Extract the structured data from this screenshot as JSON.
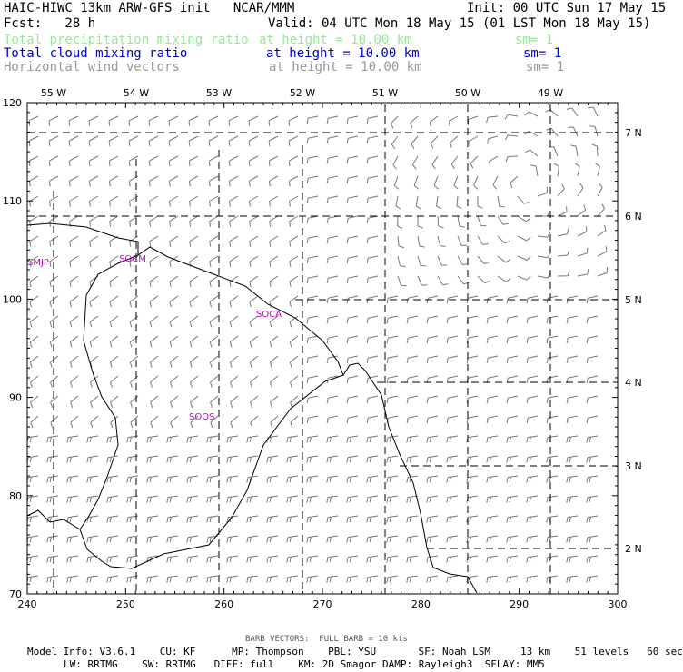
{
  "header": {
    "title": "HAIC-HIWC 13km ARW-GFS init   NCAR/MMM",
    "init": "Init: 00 UTC Sun 17 May 15",
    "fcst": "Fcst:   28 h",
    "valid": "Valid: 04 UTC Mon 18 May 15 (01 LST Mon 18 May 15)",
    "fields": [
      {
        "name": "Total precipitation mixing ratio",
        "level": "at height = 10.00 km",
        "sm": "sm= 1",
        "color": "#99e699"
      },
      {
        "name": "Total cloud mixing ratio",
        "level": "at height = 10.00 km",
        "sm": "sm= 1",
        "color": "#0000cc"
      },
      {
        "name": "Horizontal wind vectors",
        "level": "at height = 10.00 km",
        "sm": "sm= 1",
        "color": "#999999"
      }
    ]
  },
  "map": {
    "x_ticks": [
      "240",
      "250",
      "260",
      "270",
      "280",
      "290",
      "300"
    ],
    "y_ticks": [
      "70",
      "80",
      "90",
      "100",
      "110",
      "120"
    ],
    "lon_labels": [
      "55 W",
      "54 W",
      "53 W",
      "52 W",
      "51 W",
      "50 W",
      "49 W"
    ],
    "lat_labels": [
      "7 N",
      "6 N",
      "5 N",
      "4 N",
      "3 N",
      "2 N"
    ],
    "stations": [
      "SMJP",
      "SOCM",
      "SOCA",
      "SOOS"
    ],
    "coast_color": "#000000",
    "barb_color": "#777777"
  },
  "footer": {
    "barb_note": "BARB VECTORS:  FULL BARB = 10 kts",
    "line1": "Model Info: V3.6.1    CU: KF      MP: Thompson    PBL: YSU       SF: Noah LSM     13 km    51 levels   60 sec",
    "line2": "LW: RRTMG    SW: RRTMG   DIFF: full    KM: 2D Smagor DAMP: Rayleigh3  SFLAY: MM5"
  }
}
